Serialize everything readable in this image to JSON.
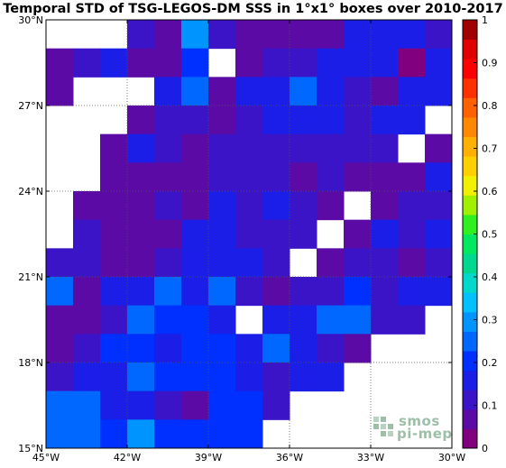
{
  "title": "Temporal STD of TSG-LEGOS-DM SSS in 1°x1° boxes over 2010-2017",
  "chart_data": {
    "type": "heatmap",
    "title": "Temporal STD of TSG-LEGOS-DM SSS in 1°x1° boxes over 2010-2017",
    "x_range": [
      -45,
      -30
    ],
    "y_range": [
      15,
      30
    ],
    "x_ticks": [
      -45,
      -42,
      -39,
      -36,
      -33,
      -30
    ],
    "x_tick_labels": [
      "45°W",
      "42°W",
      "39°W",
      "36°W",
      "33°W",
      "30°W"
    ],
    "y_ticks": [
      15,
      18,
      21,
      24,
      27,
      30
    ],
    "y_tick_labels": [
      "15°N",
      "18°N",
      "21°N",
      "24°N",
      "27°N",
      "30°N"
    ],
    "grid": true,
    "colorbar": {
      "range": [
        0,
        1
      ],
      "ticks": [
        0,
        0.1,
        0.2,
        0.3,
        0.4,
        0.5,
        0.6,
        0.7,
        0.8,
        0.9,
        1
      ],
      "tick_labels": [
        "0",
        "0.1",
        "0.2",
        "0.3",
        "0.4",
        "0.5",
        "0.6",
        "0.7",
        "0.8",
        "0.9",
        "1"
      ],
      "colors": [
        "#800080",
        "#5c0aa6",
        "#3b14c7",
        "#1a1ee6",
        "#0030ff",
        "#0068ff",
        "#0094ff",
        "#00c0ff",
        "#00d8cc",
        "#00d890",
        "#00e860",
        "#30f020",
        "#a0f000",
        "#f0f000",
        "#ffd000",
        "#ffb000",
        "#ff8800",
        "#ff6000",
        "#ff3000",
        "#ff0000",
        "#e00000",
        "#a00000"
      ]
    },
    "rows_from_north_lat_start": 29,
    "cells": [
      [
        null,
        null,
        null,
        0.1,
        0.06,
        0.3,
        0.1,
        0.05,
        0.08,
        0.09,
        0.09,
        0.18,
        0.18,
        0.14,
        0.1
      ],
      [
        0.08,
        0.13,
        0.18,
        0.05,
        0.05,
        0.19,
        null,
        0.09,
        0.12,
        0.1,
        0.16,
        0.17,
        0.18,
        0.04,
        0.18
      ],
      [
        0.05,
        null,
        null,
        null,
        0.18,
        0.25,
        0.05,
        0.14,
        0.14,
        0.25,
        0.15,
        0.12,
        0.05,
        0.14,
        0.14
      ],
      [
        null,
        null,
        null,
        0.05,
        0.1,
        0.1,
        0.05,
        0.13,
        0.17,
        0.17,
        0.17,
        0.1,
        0.14,
        0.14,
        null
      ],
      [
        null,
        null,
        0.05,
        0.17,
        0.13,
        0.05,
        0.1,
        0.12,
        0.12,
        0.12,
        0.12,
        0.12,
        0.12,
        null,
        0.09
      ],
      [
        null,
        null,
        0.07,
        0.09,
        0.05,
        0.05,
        0.1,
        0.12,
        0.11,
        0.09,
        0.12,
        0.08,
        0.05,
        0.09,
        0.18
      ],
      [
        null,
        0.06,
        0.06,
        0.05,
        0.12,
        0.08,
        0.14,
        0.12,
        0.17,
        0.1,
        0.07,
        null,
        0.05,
        0.13,
        0.13
      ],
      [
        null,
        0.1,
        0.08,
        0.05,
        0.09,
        0.14,
        0.14,
        0.13,
        0.12,
        0.11,
        null,
        0.05,
        0.14,
        0.12,
        0.16
      ],
      [
        0.1,
        0.1,
        0.08,
        0.05,
        0.11,
        0.16,
        0.14,
        0.16,
        0.12,
        null,
        0.08,
        0.11,
        0.1,
        0.08,
        0.12
      ],
      [
        0.23,
        0.05,
        0.17,
        0.18,
        0.25,
        0.17,
        0.24,
        0.12,
        0.08,
        0.13,
        0.13,
        0.19,
        0.13,
        0.18,
        0.14
      ],
      [
        0.09,
        0.07,
        0.1,
        0.24,
        0.2,
        0.2,
        0.18,
        null,
        0.18,
        0.18,
        0.25,
        0.25,
        0.12,
        0.12,
        null
      ],
      [
        0.05,
        0.12,
        0.19,
        0.19,
        0.16,
        0.19,
        0.2,
        0.18,
        0.25,
        0.17,
        0.12,
        0.06,
        null,
        null,
        null
      ],
      [
        0.12,
        0.16,
        0.17,
        0.24,
        0.2,
        0.2,
        0.2,
        0.18,
        0.1,
        0.18,
        0.18,
        null,
        null,
        null,
        null
      ],
      [
        0.23,
        0.23,
        0.15,
        0.14,
        0.13,
        0.08,
        0.2,
        0.2,
        0.12,
        null,
        null,
        null,
        null,
        null,
        null
      ],
      [
        0.23,
        0.23,
        0.19,
        0.3,
        0.2,
        0.2,
        0.2,
        0.2,
        null,
        null,
        null,
        null,
        null,
        null,
        null
      ]
    ]
  },
  "logo": {
    "line1": "smos",
    "line2": "pi-mep"
  }
}
